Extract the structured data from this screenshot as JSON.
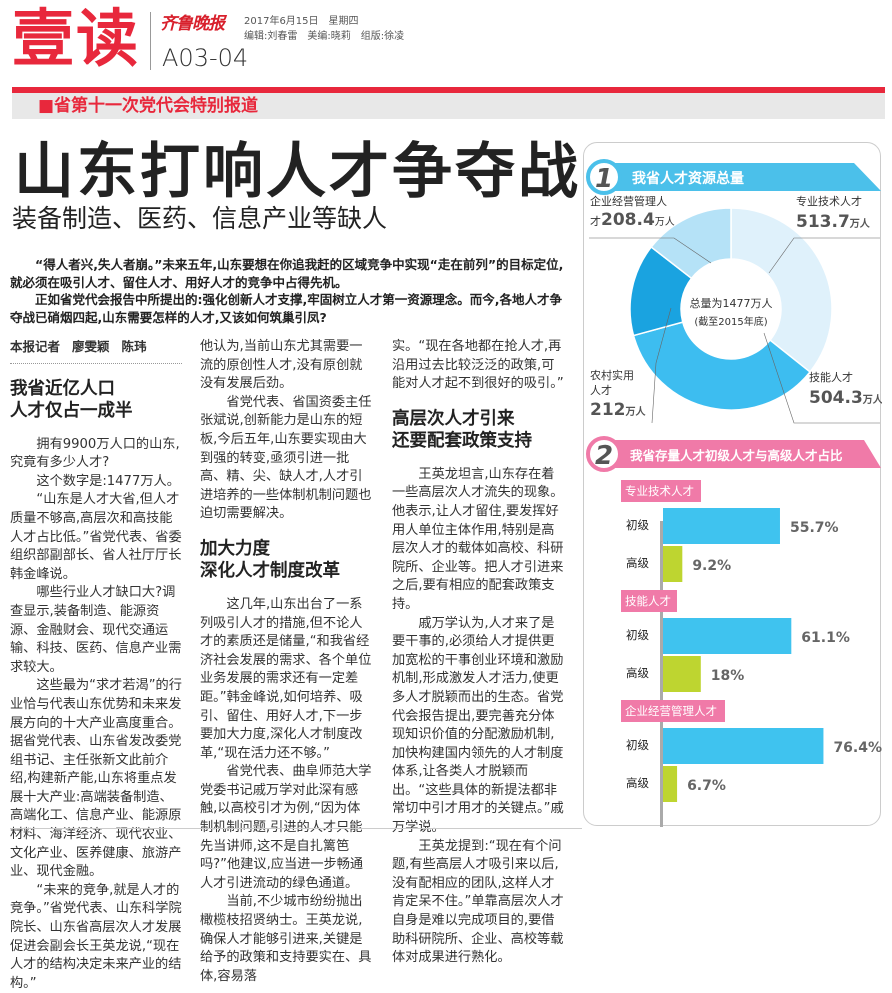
{
  "masthead": {
    "brand": "壹读",
    "logo": "齐鲁晚报",
    "date": "2017年6月15日　星期四",
    "editors": "编辑:刘春雷　美编:晓莉　组版:徐凌",
    "page": "A03-04"
  },
  "section": "■省第十一次党代会特别报道",
  "headline": "山东打响人才争夺战",
  "subhead": "装备制造、医药、信息产业等缺人",
  "intro": [
    "“得人者兴,失人者崩。”未来五年,山东要想在你追我赶的区域竞争中实现“走在前列”的目标定位,就必须在吸引人才、留住人才、用好人才的竞争中占得先机。",
    "正如省党代会报告中所提出的:强化创新人才支撑,牢固树立人才第一资源理念。而今,各地人才争夺战已硝烟四起,山东需要怎样的人才,又该如何筑巢引凤?"
  ],
  "byline": [
    "本报记者",
    "廖雯颖",
    "陈玮"
  ],
  "col1": {
    "h1": "我省近亿人口",
    "h2": "人才仅占一成半",
    "p": [
      "拥有9900万人口的山东,究竟有多少人才?",
      "这个数字是:1477万人。",
      "“山东是人才大省,但人才质量不够高,高层次和高技能人才占比低。”省党代表、省委组织部副部长、省人社厅厅长韩金峰说。",
      "哪些行业人才缺口大?调查显示,装备制造、能源资源、金融财会、现代交通运输、科技、医药、信息产业需求较大。",
      "这些最为“求才若渴”的行业恰与代表山东优势和未来发展方向的十大产业高度重合。据省党代表、山东省发改委党组书记、主任张新文此前介绍,构建新产能,山东将重点发展十大产业:高端装备制造、高端化工、信息产业、能源原材料、海洋经济、现代农业、文化产业、医养健康、旅游产业、现代金融。",
      "“未来的竞争,就是人才的竞争。”省党代表、山东科学院院长、山东省高层次人才发展促进会副会长王英龙说,“现在人才的结构决定未来产业的结构。”"
    ]
  },
  "col2": {
    "p0": "他认为,当前山东尤其需要一流的原创性人才,没有原创就没有发展后劲。",
    "p1": "省党代表、省国资委主任张斌说,创新能力是山东的短板,今后五年,山东要实现由大到强的转变,亟须引进一批高、精、尖、缺人才,人才引进培养的一些体制机制问题也迫切需要解决。",
    "h1": "加大力度",
    "h2": "深化人才制度改革",
    "p": [
      "这几年,山东出台了一系列吸引人才的措施,但不论人才的素质还是储量,“和我省经济社会发展的需求、各个单位业务发展的需求还有一定差距。”韩金峰说,如何培养、吸引、留住、用好人才,下一步要加大力度,深化人才制度改革,“现在活力还不够。”",
      "省党代表、曲阜师范大学党委书记戚万学对此深有感触,以高校引才为例,“因为体制机制问题,引进的人才只能先当讲师,这不是自扎篱笆吗?”他建议,应当进一步畅通人才引进流动的绿色通道。",
      "当前,不少城市纷纷抛出橄榄枝招贤纳士。王英龙说,确保人才能够引进来,关键是给予的政策和支持要实在、具体,容易落"
    ]
  },
  "col3": {
    "p0": "实。“现在各地都在抢人才,再沿用过去比较泛泛的政策,可能对人才起不到很好的吸引。”",
    "h1": "高层次人才引来",
    "h2": "还要配套政策支持",
    "p": [
      "王英龙坦言,山东存在着一些高层次人才流失的现象。他表示,让人才留住,要发挥好用人单位主体作用,特别是高层次人才的载体如高校、科研院所、企业等。把人才引进来之后,要有相应的配套政策支持。",
      "戚万学认为,人才来了是要干事的,必须给人才提供更加宽松的干事创业环境和激励机制,形成激发人才活力,使更多人才脱颖而出的生态。省党代会报告提出,要完善充分体现知识价值的分配激励机制,加快构建国内领先的人才制度体系,让各类人才脱颖而出。“这些具体的新提法都非常切中引才用才的关键点。”戚万学说。",
      "王英龙提到:“现在有个问题,有些高层人才吸引来以后,没有配相应的团队,这样人才肯定呆不住。”单靠高层次人才自身是难以完成项目的,要借助科研院所、企业、高校等载体对成果进行熟化。"
    ]
  },
  "chart_data": [
    {
      "type": "pie",
      "number": "1",
      "title": "我省人才资源总量",
      "center_text": "总量为",
      "center_value": "1477",
      "center_unit": "万人",
      "center_note": "(截至2015年底)",
      "unit": "万人",
      "slices": [
        {
          "label": "专业技术人才",
          "value": 513.7,
          "value_text": "513.7",
          "color": "#dff1fb"
        },
        {
          "label": "技能人才",
          "value": 504.3,
          "value_text": "504.3",
          "color": "#3dbdf0"
        },
        {
          "label": "农村实用人才",
          "value": 212,
          "value_text": "212",
          "color": "#1aa3e0"
        },
        {
          "label": "企业经营管理人才",
          "value": 208.4,
          "value_text": "208.4",
          "color": "#b5e2f7"
        }
      ],
      "header_color": "#4bc0ea"
    },
    {
      "type": "bar",
      "number": "2",
      "title": "我省存量人才初级人才与高级人才占比",
      "header_color": "#f07aa8",
      "groups": [
        {
          "name": "专业技术人才",
          "bars": [
            {
              "label": "初级",
              "value": 55.7,
              "text": "55.7%"
            },
            {
              "label": "高级",
              "value": 9.2,
              "text": "9.2%"
            }
          ]
        },
        {
          "name": "技能人才",
          "bars": [
            {
              "label": "初级",
              "value": 61.1,
              "text": "61.1%"
            },
            {
              "label": "高级",
              "value": 18,
              "text": "18%"
            }
          ]
        },
        {
          "name": "企业经营管理人才",
          "bars": [
            {
              "label": "初级",
              "value": 76.4,
              "text": "76.4%"
            },
            {
              "label": "高级",
              "value": 6.7,
              "text": "6.7%"
            }
          ]
        }
      ],
      "colors": {
        "初级": "#3fc3ef",
        "高级": "#bed530"
      }
    }
  ]
}
